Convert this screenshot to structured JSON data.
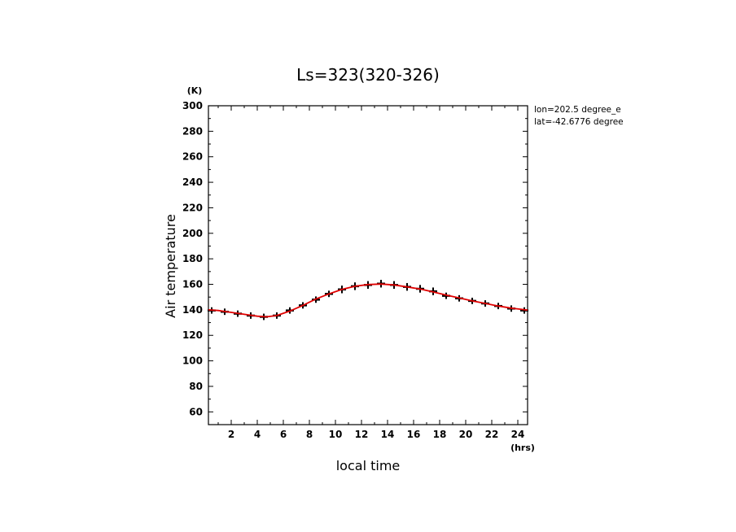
{
  "chart_data": {
    "type": "line",
    "title": "Ls=323(320-326)",
    "xlabel": "local time",
    "ylabel": "Air temperature",
    "x_unit": "(hrs)",
    "y_unit": "(K)",
    "annotations": [
      "lon=202.5 degree_e",
      "lat=-42.6776 degree"
    ],
    "xlim": [
      0.25,
      24.75
    ],
    "ylim": [
      50,
      300
    ],
    "x_ticks": [
      2,
      4,
      6,
      8,
      10,
      12,
      14,
      16,
      18,
      20,
      22,
      24
    ],
    "y_ticks": [
      60,
      80,
      100,
      120,
      140,
      160,
      180,
      200,
      220,
      240,
      260,
      280,
      300
    ],
    "colors": {
      "fit_line": "#e00000",
      "points": "#000000"
    },
    "series": [
      {
        "kind": "points_with_error_bars",
        "x": [
          0.5,
          1.5,
          2.5,
          3.5,
          4.5,
          5.5,
          6.5,
          7.5,
          8.5,
          9.5,
          10.5,
          11.5,
          12.5,
          13.5,
          14.5,
          15.5,
          16.5,
          17.5,
          18.5,
          19.5,
          20.5,
          21.5,
          22.5,
          23.5,
          24.5
        ],
        "y": [
          139.5,
          138.5,
          137,
          135.5,
          134.5,
          135.5,
          139.5,
          143.5,
          148,
          152.5,
          156,
          158.5,
          159.5,
          160.5,
          159.5,
          158,
          156.5,
          154.5,
          151,
          149,
          147,
          145,
          143,
          141,
          139.5
        ],
        "err": [
          2.5,
          2.5,
          2.5,
          2.5,
          2.5,
          2.5,
          2.5,
          2.5,
          2.5,
          2.5,
          3,
          3,
          3,
          3,
          3,
          3,
          3,
          3,
          2.5,
          2.5,
          2.5,
          2.5,
          2.5,
          2.5,
          2.5
        ]
      },
      {
        "kind": "fit_line",
        "x": [
          0.25,
          1,
          2,
          3,
          4,
          4.7,
          5.5,
          6.5,
          7.5,
          8.5,
          9.5,
          10.5,
          11.5,
          12.5,
          13.5,
          14.5,
          15.5,
          16.5,
          17.5,
          18.5,
          19.5,
          20.5,
          21.5,
          22.5,
          23.5,
          24.75
        ],
        "y": [
          140,
          139.5,
          138,
          136.5,
          135,
          134.5,
          135.5,
          139,
          143.5,
          148.5,
          152.5,
          156,
          158.5,
          159.8,
          160.2,
          159.5,
          158,
          156.3,
          154,
          151.5,
          149.3,
          147,
          145,
          143,
          141.3,
          139.8
        ]
      }
    ]
  }
}
